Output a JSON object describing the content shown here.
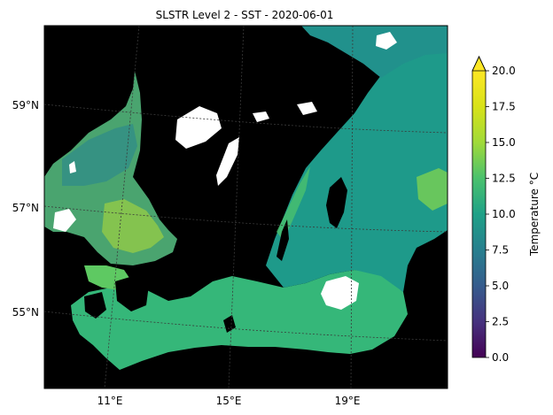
{
  "title": "SLSTR Level 2 - SST - 2020-06-01",
  "map": {
    "lat_ticks": [
      {
        "label": "59°N",
        "lat": 59
      },
      {
        "label": "57°N",
        "lat": 57
      },
      {
        "label": "55°N",
        "lat": 55
      }
    ],
    "lon_ticks": [
      {
        "label": "11°E",
        "lon": 11
      },
      {
        "label": "15°E",
        "lon": 15
      },
      {
        "label": "19°E",
        "lon": 19
      }
    ],
    "colors": {
      "land": "#000000",
      "no_data": "#ffffff",
      "gridline": "#3a3a3a"
    }
  },
  "colorbar": {
    "label": "Temperature °C",
    "min": 0.0,
    "max": 20.0,
    "extend": "max",
    "colormap": "viridis",
    "ticks": [
      "0.0",
      "2.5",
      "5.0",
      "7.5",
      "10.0",
      "12.5",
      "15.0",
      "17.5",
      "20.0"
    ]
  }
}
